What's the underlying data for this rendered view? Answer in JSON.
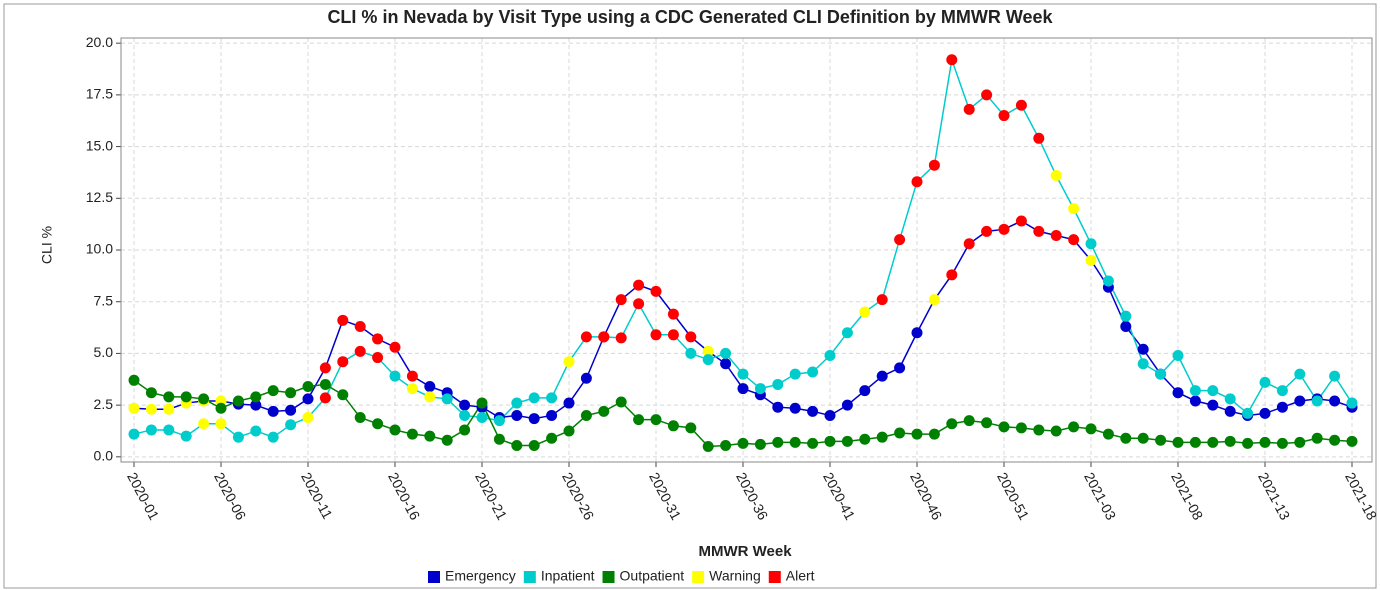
{
  "chart_data": {
    "type": "line",
    "title": "CLI % in Nevada by Visit Type using a CDC Generated CLI Definition by MMWR Week",
    "x_label": "MMWR Week",
    "y_label": "CLI %",
    "categories": [
      "2020-01",
      null,
      null,
      null,
      null,
      "2020-06",
      null,
      null,
      null,
      null,
      "2020-11",
      null,
      null,
      null,
      null,
      "2020-16",
      null,
      null,
      null,
      null,
      "2020-21",
      null,
      null,
      null,
      null,
      "2020-26",
      null,
      null,
      null,
      null,
      "2020-31",
      null,
      null,
      null,
      null,
      "2020-36",
      null,
      null,
      null,
      null,
      "2020-41",
      null,
      null,
      null,
      null,
      "2020-46",
      null,
      null,
      null,
      null,
      "2020-51",
      null,
      null,
      null,
      null,
      "2021-03",
      null,
      null,
      null,
      null,
      "2021-08",
      null,
      null,
      null,
      null,
      "2021-13",
      null,
      null,
      null,
      null,
      "2021-18"
    ],
    "ylim": [
      -0.25,
      20.25
    ],
    "yticks": [
      {
        "value": 0,
        "label": "0.0"
      },
      2.5,
      {
        "value": 5,
        "label": "5.0"
      },
      7.5,
      {
        "value": 10,
        "label": "10.0"
      },
      12.5,
      {
        "value": 15,
        "label": "15.0"
      },
      17.5,
      {
        "value": 20,
        "label": "20.0"
      }
    ],
    "grid": true,
    "legend": "bottom",
    "flags": [
      {
        "name": "Warning",
        "color": "#ffff00"
      },
      {
        "name": "Alert",
        "color": "#ff0000"
      }
    ],
    "series": [
      {
        "name": "Emergency",
        "color": "#0000cd",
        "values": [
          2.35,
          2.3,
          2.3,
          2.6,
          2.7,
          2.7,
          2.55,
          2.5,
          2.2,
          2.25,
          2.8,
          4.3,
          6.6,
          6.3,
          5.7,
          5.3,
          3.9,
          3.4,
          3.1,
          2.5,
          2.4,
          1.9,
          2.0,
          1.85,
          2.0,
          2.6,
          3.8,
          5.8,
          7.6,
          8.3,
          8.0,
          6.9,
          5.8,
          5.1,
          4.5,
          3.3,
          3.0,
          2.4,
          2.35,
          2.2,
          2.0,
          2.5,
          3.2,
          3.9,
          4.3,
          6.0,
          7.6,
          8.8,
          10.3,
          10.9,
          11.0,
          11.4,
          10.9,
          10.7,
          10.5,
          9.5,
          8.2,
          6.3,
          5.2,
          4.0,
          3.1,
          2.7,
          2.5,
          2.2,
          2.0,
          2.1,
          2.4,
          2.7,
          2.8,
          2.7,
          2.4
        ],
        "marker_colors": [
          "#ffff00",
          "#ffff00",
          "#ffff00",
          "#ffff00",
          "#ffff00",
          "#ffff00",
          "#0000cd",
          "#0000cd",
          "#0000cd",
          "#0000cd",
          "#0000cd",
          "#ff0000",
          "#ff0000",
          "#ff0000",
          "#ff0000",
          "#ff0000",
          "#ff0000",
          "#0000cd",
          "#0000cd",
          "#0000cd",
          "#0000cd",
          "#0000cd",
          "#0000cd",
          "#0000cd",
          "#0000cd",
          "#0000cd",
          "#0000cd",
          "#ff0000",
          "#ff0000",
          "#ff0000",
          "#ff0000",
          "#ff0000",
          "#ff0000",
          "#ffff00",
          "#0000cd",
          "#0000cd",
          "#0000cd",
          "#0000cd",
          "#0000cd",
          "#0000cd",
          "#0000cd",
          "#0000cd",
          "#0000cd",
          "#0000cd",
          "#0000cd",
          "#0000cd",
          "#ffff00",
          "#ff0000",
          "#ff0000",
          "#ff0000",
          "#ff0000",
          "#ff0000",
          "#ff0000",
          "#ff0000",
          "#ff0000",
          "#ffff00",
          "#0000cd",
          "#0000cd",
          "#0000cd",
          "#0000cd",
          "#0000cd",
          "#0000cd",
          "#0000cd",
          "#0000cd",
          "#0000cd",
          "#0000cd",
          "#0000cd",
          "#0000cd",
          "#0000cd",
          "#0000cd",
          "#0000cd"
        ]
      },
      {
        "name": "Inpatient",
        "color": "#00cccc",
        "values": [
          1.1,
          1.3,
          1.3,
          1.0,
          1.6,
          1.6,
          0.95,
          1.25,
          0.95,
          1.55,
          1.9,
          2.85,
          4.6,
          5.1,
          4.8,
          3.9,
          3.3,
          2.9,
          2.8,
          2.0,
          1.9,
          1.75,
          2.6,
          2.85,
          2.85,
          4.6,
          5.8,
          5.8,
          5.75,
          7.4,
          5.9,
          5.9,
          5.0,
          4.7,
          5.0,
          4.0,
          3.3,
          3.5,
          4.0,
          4.1,
          4.9,
          6.0,
          7.0,
          7.6,
          10.5,
          13.3,
          14.1,
          19.2,
          16.8,
          17.5,
          16.5,
          17.0,
          15.4,
          13.6,
          12.0,
          10.3,
          8.5,
          6.8,
          4.5,
          4.0,
          4.9,
          3.2,
          3.2,
          2.8,
          2.1,
          3.6,
          3.2,
          4.0,
          2.7,
          3.9,
          2.6
        ],
        "marker_colors": [
          "#00cccc",
          "#00cccc",
          "#00cccc",
          "#00cccc",
          "#ffff00",
          "#ffff00",
          "#00cccc",
          "#00cccc",
          "#00cccc",
          "#00cccc",
          "#ffff00",
          "#ff0000",
          "#ff0000",
          "#ff0000",
          "#ff0000",
          "#00cccc",
          "#ffff00",
          "#ffff00",
          "#00cccc",
          "#00cccc",
          "#00cccc",
          "#00cccc",
          "#00cccc",
          "#00cccc",
          "#00cccc",
          "#ffff00",
          "#ff0000",
          "#ff0000",
          "#ff0000",
          "#ff0000",
          "#ff0000",
          "#ff0000",
          "#00cccc",
          "#00cccc",
          "#00cccc",
          "#00cccc",
          "#00cccc",
          "#00cccc",
          "#00cccc",
          "#00cccc",
          "#00cccc",
          "#00cccc",
          "#ffff00",
          "#ff0000",
          "#ff0000",
          "#ff0000",
          "#ff0000",
          "#ff0000",
          "#ff0000",
          "#ff0000",
          "#ff0000",
          "#ff0000",
          "#ff0000",
          "#ffff00",
          "#ffff00",
          "#00cccc",
          "#00cccc",
          "#00cccc",
          "#00cccc",
          "#00cccc",
          "#00cccc",
          "#00cccc",
          "#00cccc",
          "#00cccc",
          "#00cccc",
          "#00cccc",
          "#00cccc",
          "#00cccc",
          "#00cccc",
          "#00cccc",
          "#00cccc"
        ]
      },
      {
        "name": "Outpatient",
        "color": "#008000",
        "values": [
          3.7,
          3.1,
          2.9,
          2.9,
          2.8,
          2.35,
          2.7,
          2.9,
          3.2,
          3.1,
          3.4,
          3.5,
          3.0,
          1.9,
          1.6,
          1.3,
          1.1,
          1.0,
          0.8,
          1.3,
          2.6,
          0.85,
          0.55,
          0.55,
          0.9,
          1.25,
          2.0,
          2.2,
          2.65,
          1.8,
          1.8,
          1.5,
          1.4,
          0.5,
          0.55,
          0.65,
          0.6,
          0.7,
          0.7,
          0.65,
          0.75,
          0.75,
          0.85,
          0.95,
          1.15,
          1.1,
          1.1,
          1.6,
          1.75,
          1.65,
          1.45,
          1.4,
          1.3,
          1.25,
          1.45,
          1.35,
          1.1,
          0.9,
          0.9,
          0.8,
          0.7,
          0.7,
          0.7,
          0.75,
          0.65,
          0.7,
          0.65,
          0.7,
          0.9,
          0.8,
          0.75
        ],
        "marker_colors": [
          "#008000",
          "#008000",
          "#008000",
          "#008000",
          "#008000",
          "#008000",
          "#008000",
          "#008000",
          "#008000",
          "#008000",
          "#008000",
          "#008000",
          "#008000",
          "#008000",
          "#008000",
          "#008000",
          "#008000",
          "#008000",
          "#008000",
          "#008000",
          "#008000",
          "#008000",
          "#008000",
          "#008000",
          "#008000",
          "#008000",
          "#008000",
          "#008000",
          "#008000",
          "#008000",
          "#008000",
          "#008000",
          "#008000",
          "#008000",
          "#008000",
          "#008000",
          "#008000",
          "#008000",
          "#008000",
          "#008000",
          "#008000",
          "#008000",
          "#008000",
          "#008000",
          "#008000",
          "#008000",
          "#008000",
          "#008000",
          "#008000",
          "#008000",
          "#008000",
          "#008000",
          "#008000",
          "#008000",
          "#008000",
          "#008000",
          "#008000",
          "#008000",
          "#008000",
          "#008000",
          "#008000",
          "#008000",
          "#008000",
          "#008000",
          "#008000",
          "#008000",
          "#008000",
          "#008000",
          "#008000",
          "#008000",
          "#008000"
        ]
      }
    ]
  }
}
